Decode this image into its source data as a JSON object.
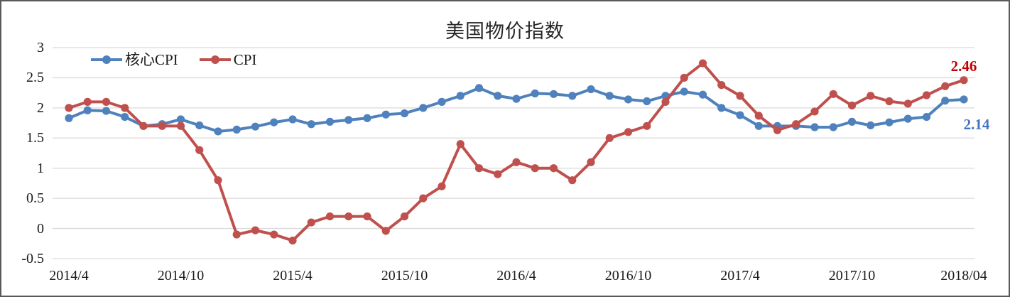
{
  "chart": {
    "title": "美国物价指数",
    "background": "#FFFFFF",
    "border_color": "#595959",
    "grid_color": "#D9D9D9"
  },
  "legend": {
    "items": [
      {
        "label": "核心CPI",
        "color": "#4F81BD"
      },
      {
        "label": "CPI",
        "color": "#C0504D"
      }
    ]
  },
  "end_labels": {
    "cpi": {
      "text": "2.46",
      "color": "#C00000"
    },
    "core": {
      "text": "2.14",
      "color": "#4472C4"
    }
  },
  "chart_data": {
    "type": "line",
    "title": "美国物价指数",
    "xlabel": "",
    "ylabel": "",
    "ylim": [
      -0.5,
      3
    ],
    "grid": true,
    "legend_position": "top-left-inside",
    "x": [
      "2014/4",
      "2014/5",
      "2014/6",
      "2014/7",
      "2014/8",
      "2014/9",
      "2014/10",
      "2014/11",
      "2014/12",
      "2015/1",
      "2015/2",
      "2015/3",
      "2015/4",
      "2015/5",
      "2015/6",
      "2015/7",
      "2015/8",
      "2015/9",
      "2015/10",
      "2015/11",
      "2015/12",
      "2016/1",
      "2016/2",
      "2016/3",
      "2016/4",
      "2016/5",
      "2016/6",
      "2016/7",
      "2016/8",
      "2016/9",
      "2016/10",
      "2016/11",
      "2016/12",
      "2017/1",
      "2017/2",
      "2017/3",
      "2017/4",
      "2017/5",
      "2017/6",
      "2017/7",
      "2017/8",
      "2017/9",
      "2017/10",
      "2017/11",
      "2017/12",
      "2018/1",
      "2018/2",
      "2018/3",
      "2018/4"
    ],
    "x_tick_indices": [
      0,
      6,
      12,
      18,
      24,
      30,
      36,
      42,
      48
    ],
    "x_tick_labels": [
      "2014/4",
      "2014/10",
      "2015/4",
      "2015/10",
      "2016/4",
      "2016/10",
      "2017/4",
      "2017/10",
      "2018/04"
    ],
    "y_ticks": [
      "3",
      "2.5",
      "2",
      "1.5",
      "1",
      "0.5",
      "0",
      "-0.5"
    ],
    "series": [
      {
        "name": "核心CPI",
        "color": "#4F81BD",
        "marker": "circle",
        "values": [
          1.83,
          1.96,
          1.95,
          1.85,
          1.7,
          1.73,
          1.81,
          1.71,
          1.61,
          1.64,
          1.69,
          1.76,
          1.81,
          1.73,
          1.77,
          1.8,
          1.83,
          1.89,
          1.91,
          2.0,
          2.1,
          2.2,
          2.33,
          2.2,
          2.15,
          2.24,
          2.23,
          2.2,
          2.31,
          2.2,
          2.14,
          2.11,
          2.2,
          2.27,
          2.22,
          2.0,
          1.88,
          1.7,
          1.7,
          1.7,
          1.68,
          1.68,
          1.77,
          1.71,
          1.76,
          1.82,
          1.85,
          2.12,
          2.14
        ]
      },
      {
        "name": "CPI",
        "color": "#C0504D",
        "marker": "circle",
        "values": [
          2.0,
          2.1,
          2.1,
          2.0,
          1.7,
          1.7,
          1.7,
          1.3,
          0.8,
          -0.1,
          -0.03,
          -0.1,
          -0.2,
          0.1,
          0.2,
          0.2,
          0.2,
          -0.04,
          0.2,
          0.5,
          0.7,
          1.4,
          1.0,
          0.9,
          1.1,
          1.0,
          1.0,
          0.8,
          1.1,
          1.5,
          1.6,
          1.7,
          2.1,
          2.5,
          2.74,
          2.38,
          2.2,
          1.87,
          1.63,
          1.73,
          1.94,
          2.23,
          2.04,
          2.2,
          2.11,
          2.07,
          2.21,
          2.36,
          2.46
        ]
      }
    ],
    "end_value_labels": {
      "CPI": "2.46",
      "核心CPI": "2.14"
    }
  }
}
